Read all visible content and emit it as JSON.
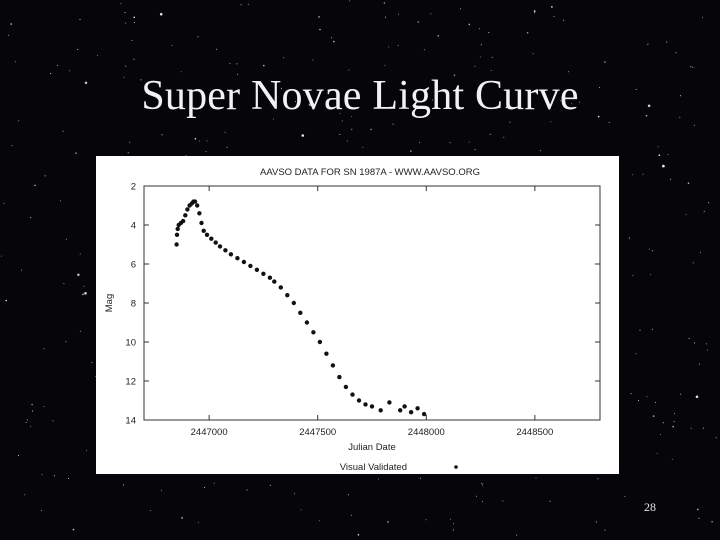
{
  "slide": {
    "title": "Super Novae Light Curve",
    "page_number": "28"
  },
  "colors": {
    "background": "#05050a",
    "title": "#f2f2f2",
    "panel": "#ffffff",
    "points": "#111111"
  },
  "chart_data": {
    "type": "scatter",
    "title": "AAVSO DATA FOR SN 1987A - WWW.AAVSO.ORG",
    "xlabel": "Julian Date",
    "ylabel": "Mag",
    "xlim": [
      2446700,
      2448800
    ],
    "ylim": [
      2,
      14
    ],
    "y_inverted": true,
    "x_ticks": [
      2447000,
      2447500,
      2448000,
      2448500
    ],
    "y_ticks": [
      2,
      4,
      6,
      8,
      10,
      12,
      14
    ],
    "grid": false,
    "legend": {
      "position": "bottom-right",
      "entries": [
        "Visual Validated"
      ]
    },
    "series": [
      {
        "name": "Visual Validated",
        "marker": "dot",
        "points": [
          [
            2446850,
            5.0
          ],
          [
            2446852,
            4.5
          ],
          [
            2446855,
            4.2
          ],
          [
            2446860,
            4.0
          ],
          [
            2446870,
            3.9
          ],
          [
            2446880,
            3.8
          ],
          [
            2446890,
            3.5
          ],
          [
            2446900,
            3.2
          ],
          [
            2446910,
            3.0
          ],
          [
            2446920,
            2.9
          ],
          [
            2446928,
            2.8
          ],
          [
            2446935,
            2.8
          ],
          [
            2446945,
            3.0
          ],
          [
            2446955,
            3.4
          ],
          [
            2446965,
            3.9
          ],
          [
            2446975,
            4.3
          ],
          [
            2446990,
            4.5
          ],
          [
            2447010,
            4.7
          ],
          [
            2447030,
            4.9
          ],
          [
            2447050,
            5.1
          ],
          [
            2447075,
            5.3
          ],
          [
            2447100,
            5.5
          ],
          [
            2447130,
            5.7
          ],
          [
            2447160,
            5.9
          ],
          [
            2447190,
            6.1
          ],
          [
            2447220,
            6.3
          ],
          [
            2447250,
            6.5
          ],
          [
            2447280,
            6.7
          ],
          [
            2447300,
            6.9
          ],
          [
            2447330,
            7.2
          ],
          [
            2447360,
            7.6
          ],
          [
            2447390,
            8.0
          ],
          [
            2447420,
            8.5
          ],
          [
            2447450,
            9.0
          ],
          [
            2447480,
            9.5
          ],
          [
            2447510,
            10.0
          ],
          [
            2447540,
            10.6
          ],
          [
            2447570,
            11.2
          ],
          [
            2447600,
            11.8
          ],
          [
            2447630,
            12.3
          ],
          [
            2447660,
            12.7
          ],
          [
            2447690,
            13.0
          ],
          [
            2447720,
            13.2
          ],
          [
            2447750,
            13.3
          ],
          [
            2447790,
            13.5
          ],
          [
            2447830,
            13.1
          ],
          [
            2447880,
            13.5
          ],
          [
            2447900,
            13.3
          ],
          [
            2447930,
            13.6
          ],
          [
            2447960,
            13.4
          ],
          [
            2447990,
            13.7
          ]
        ]
      }
    ]
  }
}
